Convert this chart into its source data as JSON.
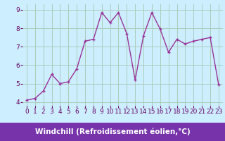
{
  "x": [
    0,
    1,
    2,
    3,
    4,
    5,
    6,
    7,
    8,
    9,
    10,
    11,
    12,
    13,
    14,
    15,
    16,
    17,
    18,
    19,
    20,
    21,
    22,
    23
  ],
  "y": [
    4.1,
    4.2,
    4.6,
    5.5,
    5.0,
    5.1,
    5.8,
    7.3,
    7.4,
    8.85,
    8.3,
    8.85,
    7.7,
    5.2,
    7.6,
    8.85,
    7.95,
    6.7,
    7.4,
    7.15,
    7.3,
    7.4,
    7.5,
    4.95
  ],
  "line_color": "#993399",
  "marker": "+",
  "marker_size": 3,
  "xlabel": "Windchill (Refroidissement éolien,°C)",
  "xlim": [
    -0.5,
    23.5
  ],
  "ylim": [
    3.8,
    9.3
  ],
  "yticks": [
    4,
    5,
    6,
    7,
    8,
    9
  ],
  "xticks": [
    0,
    1,
    2,
    3,
    4,
    5,
    6,
    7,
    8,
    9,
    10,
    11,
    12,
    13,
    14,
    15,
    16,
    17,
    18,
    19,
    20,
    21,
    22,
    23
  ],
  "bg_color": "#cceeff",
  "grid_color": "#aaccbb",
  "tick_label_color": "#660066",
  "xlabel_text_color": "#ffffff",
  "xlabel_bg": "#7733aa",
  "xlabel_fontsize": 7.5,
  "tick_fontsize": 6.5,
  "line_width": 1.0
}
